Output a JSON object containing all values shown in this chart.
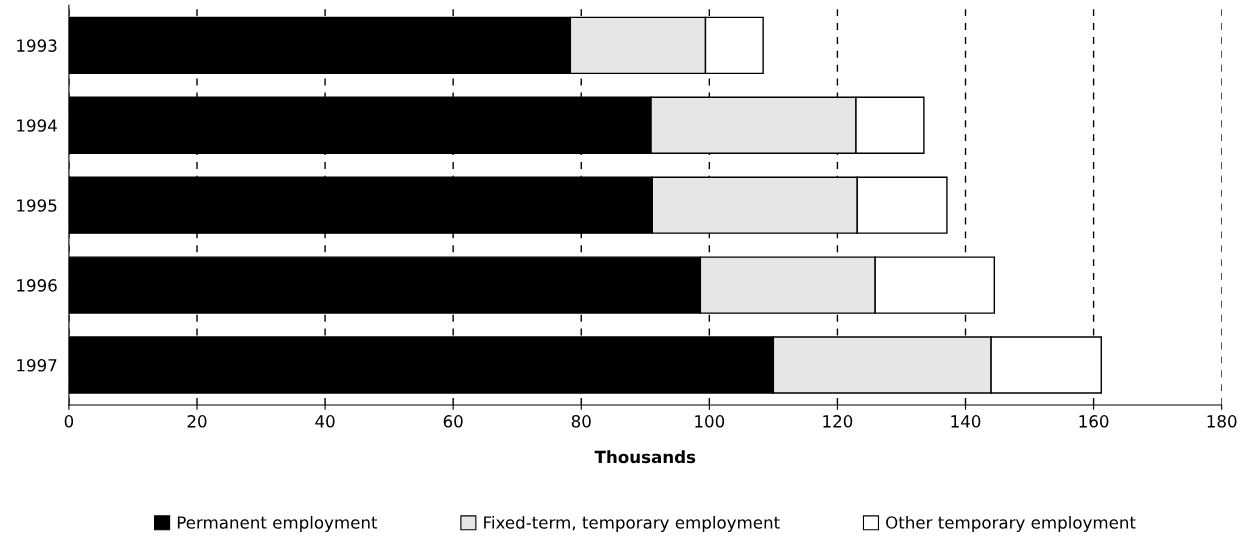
{
  "chart_data": {
    "type": "bar",
    "orientation": "horizontal",
    "stacked": true,
    "categories": [
      "1993",
      "1994",
      "1995",
      "1996",
      "1997"
    ],
    "series": [
      {
        "name": "Permanent employment",
        "color": "#000000",
        "values": [
          78.3,
          90.9,
          91.1,
          98.6,
          110.0
        ]
      },
      {
        "name": "Fixed-term, temporary employment",
        "color": "#e6e6e6",
        "values": [
          21.1,
          32.0,
          32.0,
          27.3,
          34.0
        ]
      },
      {
        "name": "Other temporary employment",
        "color": "#ffffff",
        "values": [
          9.0,
          10.6,
          14.0,
          18.6,
          17.2
        ]
      }
    ],
    "xlabel": "Thousands",
    "xlim": [
      0,
      180
    ],
    "xticks": [
      0,
      20,
      40,
      60,
      80,
      100,
      120,
      140,
      160,
      180
    ],
    "grid": "x",
    "legend": "bottom"
  }
}
